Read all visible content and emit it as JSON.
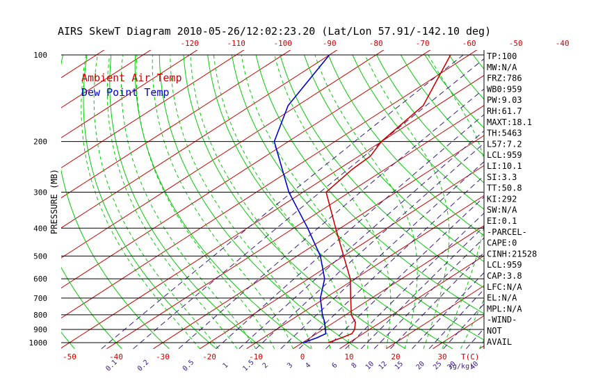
{
  "chart_data": {
    "type": "line",
    "title": "AIRS SkewT Diagram 2010-05-26/12:02:23.20 (Lat/Lon 57.91/-142.10 deg)",
    "ylabel": "PRESSURE (MB)",
    "y_scale": "log",
    "ylim": [
      1000,
      100
    ],
    "pressure_ticks": [
      100,
      200,
      300,
      400,
      500,
      600,
      700,
      800,
      900,
      1000
    ],
    "temp_ticks_top": [
      -120,
      -110,
      -100,
      -90,
      -80,
      -70,
      -60,
      -50,
      -40
    ],
    "temp_ticks_bottom": [
      -50,
      -40,
      -30,
      -20,
      -10,
      0,
      10,
      20,
      30
    ],
    "temp_unit_label": "T(C)",
    "mixing_ratio_ticks": [
      "0.1",
      "0.2",
      "0.5",
      "1",
      "1.5",
      "2",
      "3",
      "4",
      "6",
      "8",
      "10",
      "12",
      "15",
      "20",
      "25",
      "30",
      "40"
    ],
    "mixing_ratio_unit_label": "(g/kg)",
    "legend": [
      "Ambient Air Temp",
      "Dew Point Temp"
    ],
    "legend_position": "top-left",
    "colors": {
      "temperature": "#cc0000",
      "dewpoint": "#0000cc",
      "isotherms": "#cc0000",
      "dry_adiabats": "#00cc00",
      "moist_adiabats": "#00cc00",
      "mixing_ratio": "#3a1a8a",
      "isobars": "#000000"
    },
    "series": [
      {
        "name": "Ambient Air Temp",
        "points": [
          {
            "p": 1000,
            "t": 5.5
          },
          {
            "p": 960,
            "t": 6.8
          },
          {
            "p": 930,
            "t": 7.6
          },
          {
            "p": 900,
            "t": 6.8
          },
          {
            "p": 850,
            "t": 4.6
          },
          {
            "p": 800,
            "t": 1.2
          },
          {
            "p": 700,
            "t": -4.5
          },
          {
            "p": 600,
            "t": -11.0
          },
          {
            "p": 500,
            "t": -20.0
          },
          {
            "p": 400,
            "t": -31.0
          },
          {
            "p": 300,
            "t": -45.0
          },
          {
            "p": 250,
            "t": -47.0
          },
          {
            "p": 225,
            "t": -47.5
          },
          {
            "p": 200,
            "t": -50.0
          },
          {
            "p": 150,
            "t": -53.0
          },
          {
            "p": 100,
            "t": -64.0
          }
        ]
      },
      {
        "name": "Dew Point Temp",
        "points": [
          {
            "p": 1000,
            "t": 0.2
          },
          {
            "p": 960,
            "t": 1.5
          },
          {
            "p": 930,
            "t": 2.0
          },
          {
            "p": 900,
            "t": 0.5
          },
          {
            "p": 850,
            "t": -2.0
          },
          {
            "p": 800,
            "t": -5.0
          },
          {
            "p": 700,
            "t": -11.0
          },
          {
            "p": 600,
            "t": -16.5
          },
          {
            "p": 500,
            "t": -25.0
          },
          {
            "p": 400,
            "t": -37.0
          },
          {
            "p": 300,
            "t": -53.0
          },
          {
            "p": 200,
            "t": -73.0
          },
          {
            "p": 150,
            "t": -82.0
          },
          {
            "p": 100,
            "t": -90.0
          }
        ]
      }
    ]
  },
  "indices": [
    "TP:100",
    "MW:N/A",
    "FRZ:786",
    "WB0:959",
    "PW:9.03",
    "RH:61.7",
    "MAXT:18.1",
    "TH:5463",
    "L57:7.2",
    "LCL:959",
    "LI:10.1",
    "SI:3.3",
    "TT:50.8",
    "KI:292",
    "SW:N/A",
    "EI:0.1",
    "-PARCEL-",
    "CAPE:0",
    "CINH:21528",
    "LCL:959",
    "CAP:3.8",
    "LFC:N/A",
    "EL:N/A",
    "MPL:N/A",
    "-WIND-",
    "NOT",
    "AVAIL"
  ]
}
